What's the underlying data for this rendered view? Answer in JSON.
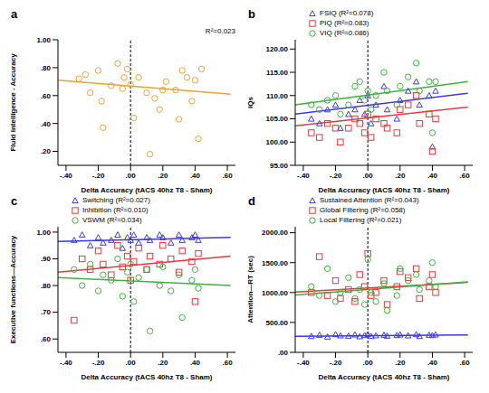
{
  "chart_data": [
    {
      "type": "scatter",
      "title": "a",
      "x_label": "Delta Accuracy  (tACS 40hz T8 - Sham)",
      "y_label": "Fluid Intelligence - Accuracy",
      "annotation": "R²=0.023",
      "x": [
        -0.32,
        -0.28,
        -0.25,
        -0.2,
        -0.18,
        -0.17,
        -0.12,
        -0.08,
        -0.05,
        -0.04,
        -0.02,
        0.0,
        0.02,
        0.05,
        0.1,
        0.12,
        0.15,
        0.18,
        0.2,
        0.22,
        0.28,
        0.3,
        0.32,
        0.35,
        0.4,
        0.42,
        0.38,
        0.44
      ],
      "series": [
        {
          "color": "#f0a030",
          "marker": "circle",
          "values": [
            0.72,
            0.75,
            0.62,
            0.78,
            0.56,
            0.37,
            0.67,
            0.83,
            0.65,
            0.73,
            0.79,
            0.68,
            0.44,
            0.73,
            0.62,
            0.18,
            0.58,
            0.5,
            0.64,
            0.7,
            0.64,
            0.43,
            0.78,
            0.73,
            0.71,
            0.29,
            0.56,
            0.79
          ],
          "trend": {
            "x": [
              -0.45,
              0.62
            ],
            "y": [
              0.71,
              0.61
            ]
          }
        }
      ],
      "xlim": [
        -0.45,
        0.65
      ],
      "ylim": [
        0.1,
        1.0
      ],
      "xticks": [
        {
          "value": -0.4,
          "label": "-.40"
        },
        {
          "value": -0.2,
          "label": "-.20"
        },
        {
          "value": 0,
          "label": ".00"
        },
        {
          "value": 0.2,
          "label": ".20"
        },
        {
          "value": 0.4,
          "label": ".40"
        },
        {
          "value": 0.6,
          "label": ".60"
        }
      ],
      "yticks": [
        {
          "value": 0.2,
          "label": ".20"
        },
        {
          "value": 0.4,
          "label": ".40"
        },
        {
          "value": 0.6,
          "label": ".60"
        },
        {
          "value": 0.8,
          "label": ".80"
        },
        {
          "value": 1.0,
          "label": "1.00"
        }
      ],
      "reference_x": 0
    },
    {
      "type": "scatter",
      "title": "b",
      "x_label": "Delta Accuracy  (tACS 40hz T8 - Sham)",
      "y_label": "IQs",
      "legend": "top",
      "x": [
        -0.35,
        -0.3,
        -0.25,
        -0.2,
        -0.17,
        -0.12,
        -0.08,
        -0.05,
        -0.02,
        0.0,
        0.02,
        0.05,
        0.1,
        0.12,
        0.18,
        0.2,
        0.25,
        0.3,
        0.32,
        0.38,
        0.4,
        0.42
      ],
      "series": [
        {
          "name": "FSIQ (R²=0.078)",
          "color": "#3a3adc",
          "marker": "triangle",
          "values": [
            105,
            104,
            107,
            108,
            103,
            106,
            107,
            109,
            106,
            110,
            104,
            108,
            112,
            107,
            105,
            109,
            111,
            113,
            108,
            110,
            99,
            111
          ],
          "trend": {
            "x": [
              -0.45,
              0.62
            ],
            "y": [
              106,
              110.5
            ]
          }
        },
        {
          "name": "PIQ (R²=0.083)",
          "color": "#e03c3c",
          "marker": "square",
          "values": [
            102,
            101,
            104,
            103,
            100,
            103,
            105,
            104,
            102,
            106,
            101,
            105,
            104,
            103,
            102,
            107,
            108,
            110,
            104,
            106,
            98,
            105
          ],
          "trend": {
            "x": [
              -0.45,
              0.62
            ],
            "y": [
              103.5,
              107.5
            ]
          }
        },
        {
          "name": "VIQ (R²=0.086)",
          "color": "#3cb43c",
          "marker": "circle",
          "values": [
            108,
            107,
            109,
            110,
            106,
            108,
            112,
            113,
            109,
            111,
            107,
            110,
            115,
            111,
            108,
            112,
            114,
            117,
            111,
            113,
            102,
            113
          ],
          "trend": {
            "x": [
              -0.45,
              0.62
            ],
            "y": [
              108,
              113
            ]
          }
        }
      ],
      "xlim": [
        -0.45,
        0.65
      ],
      "ylim": [
        95,
        122
      ],
      "xticks": [
        {
          "value": -0.4,
          "label": "-.40"
        },
        {
          "value": -0.2,
          "label": "-.20"
        },
        {
          "value": 0,
          "label": ".00"
        },
        {
          "value": 0.2,
          "label": ".20"
        },
        {
          "value": 0.4,
          "label": ".40"
        },
        {
          "value": 0.6,
          "label": ".60"
        }
      ],
      "yticks": [
        {
          "value": 95,
          "label": "95.00"
        },
        {
          "value": 100,
          "label": "100.00"
        },
        {
          "value": 105,
          "label": "105.00"
        },
        {
          "value": 110,
          "label": "110.00"
        },
        {
          "value": 115,
          "label": "115.00"
        },
        {
          "value": 120,
          "label": "120.00"
        }
      ],
      "reference_x": 0
    },
    {
      "type": "scatter",
      "title": "c",
      "x_label": "Delta Accuracy  (tACS 40hz T8 - Sham)",
      "y_label": "Executive functions—Accuracy",
      "legend": "top",
      "x": [
        -0.35,
        -0.3,
        -0.25,
        -0.2,
        -0.17,
        -0.12,
        -0.08,
        -0.05,
        -0.02,
        0.0,
        0.02,
        0.05,
        0.1,
        0.12,
        0.18,
        0.2,
        0.25,
        0.3,
        0.32,
        0.38,
        0.4,
        0.42
      ],
      "series": [
        {
          "name": "Switching (R²=0.027)",
          "color": "#3a3adc",
          "marker": "triangle",
          "values": [
            0.97,
            0.99,
            0.95,
            0.98,
            0.96,
            0.97,
            0.99,
            0.94,
            0.98,
            0.97,
            0.99,
            0.96,
            0.98,
            0.97,
            0.99,
            0.98,
            0.96,
            0.99,
            0.97,
            0.98,
            0.99,
            0.97
          ],
          "trend": {
            "x": [
              -0.45,
              0.62
            ],
            "y": [
              0.965,
              0.98
            ]
          }
        },
        {
          "name": "Inhibition (R²=0.010)",
          "color": "#e03c3c",
          "marker": "square",
          "values": [
            0.67,
            0.9,
            0.86,
            0.93,
            0.88,
            0.84,
            0.95,
            0.87,
            0.91,
            0.82,
            0.89,
            0.94,
            0.86,
            0.91,
            0.88,
            0.95,
            0.9,
            0.85,
            0.93,
            0.89,
            0.74,
            0.92
          ],
          "trend": {
            "x": [
              -0.45,
              0.62
            ],
            "y": [
              0.85,
              0.91
            ]
          }
        },
        {
          "name": "VSWM (R²=0.034)",
          "color": "#3cb43c",
          "marker": "circle",
          "values": [
            0.86,
            0.8,
            0.88,
            0.78,
            0.84,
            0.82,
            0.9,
            0.76,
            0.85,
            0.88,
            0.74,
            0.83,
            0.86,
            0.63,
            0.8,
            0.87,
            0.78,
            0.84,
            0.68,
            0.82,
            0.86,
            0.79
          ],
          "trend": {
            "x": [
              -0.45,
              0.62
            ],
            "y": [
              0.83,
              0.8
            ]
          }
        }
      ],
      "xlim": [
        -0.45,
        0.65
      ],
      "ylim": [
        0.55,
        1.02
      ],
      "xticks": [
        {
          "value": -0.4,
          "label": "-.40"
        },
        {
          "value": -0.2,
          "label": "-.20"
        },
        {
          "value": 0,
          "label": ".00"
        },
        {
          "value": 0.2,
          "label": ".20"
        },
        {
          "value": 0.4,
          "label": ".40"
        },
        {
          "value": 0.6,
          "label": ".60"
        }
      ],
      "yticks": [
        {
          "value": 0.6,
          "label": ".60"
        },
        {
          "value": 0.7,
          "label": ".70"
        },
        {
          "value": 0.8,
          "label": ".80"
        },
        {
          "value": 0.9,
          "label": ".90"
        },
        {
          "value": 1.0,
          "label": "1.00"
        }
      ],
      "reference_x": 0
    },
    {
      "type": "scatter",
      "title": "d",
      "x_label": "Delta Accuracy  (tACS 40hz T8 - Sham)",
      "y_label": "Attention—RT (sec)",
      "legend": "top",
      "x": [
        -0.35,
        -0.3,
        -0.25,
        -0.2,
        -0.17,
        -0.12,
        -0.08,
        -0.05,
        -0.02,
        0.0,
        0.02,
        0.05,
        0.1,
        0.12,
        0.18,
        0.2,
        0.25,
        0.3,
        0.32,
        0.38,
        0.4,
        0.42
      ],
      "series": [
        {
          "name": "Sustained Attention (R²=0.043)",
          "color": "#3a3adc",
          "marker": "triangle",
          "values": [
            270,
            290,
            260,
            300,
            280,
            275,
            295,
            265,
            285,
            300,
            270,
            280,
            290,
            275,
            285,
            295,
            280,
            300,
            270,
            290,
            285,
            295
          ],
          "trend": {
            "x": [
              -0.45,
              0.62
            ],
            "y": [
              270,
              290
            ]
          }
        },
        {
          "name": "Global Filtering (R²=0.058)",
          "color": "#e03c3c",
          "marker": "square",
          "values": [
            1000,
            1600,
            950,
            1200,
            900,
            1050,
            850,
            1300,
            1100,
            1650,
            950,
            1000,
            1200,
            800,
            1100,
            1350,
            1250,
            1400,
            900,
            1100,
            1300,
            1000
          ],
          "trend": {
            "x": [
              -0.45,
              0.62
            ],
            "y": [
              1010,
              1170
            ]
          }
        },
        {
          "name": "Local Filtering (R²=0.021)",
          "color": "#3cb43c",
          "marker": "circle",
          "values": [
            1100,
            950,
            1400,
            850,
            1000,
            1250,
            900,
            1050,
            800,
            1550,
            1000,
            850,
            1150,
            700,
            950,
            1400,
            1200,
            1300,
            1050,
            1200,
            1500,
            1100
          ],
          "trend": {
            "x": [
              -0.45,
              0.62
            ],
            "y": [
              960,
              1180
            ]
          }
        }
      ],
      "xlim": [
        -0.45,
        0.65
      ],
      "ylim": [
        0,
        2100
      ],
      "xticks": [
        {
          "value": -0.4,
          "label": "-.40"
        },
        {
          "value": -0.2,
          "label": "-.20"
        },
        {
          "value": 0,
          "label": ".00"
        },
        {
          "value": 0.2,
          "label": ".20"
        },
        {
          "value": 0.4,
          "label": ".40"
        },
        {
          "value": 0.6,
          "label": ".60"
        }
      ],
      "yticks": [
        {
          "value": 0,
          "label": ".00"
        },
        {
          "value": 500,
          "label": "500.00"
        },
        {
          "value": 1000,
          "label": "1000.00"
        },
        {
          "value": 1500,
          "label": "1500.00"
        },
        {
          "value": 2000,
          "label": "2000.00"
        }
      ],
      "reference_x": 0
    }
  ]
}
